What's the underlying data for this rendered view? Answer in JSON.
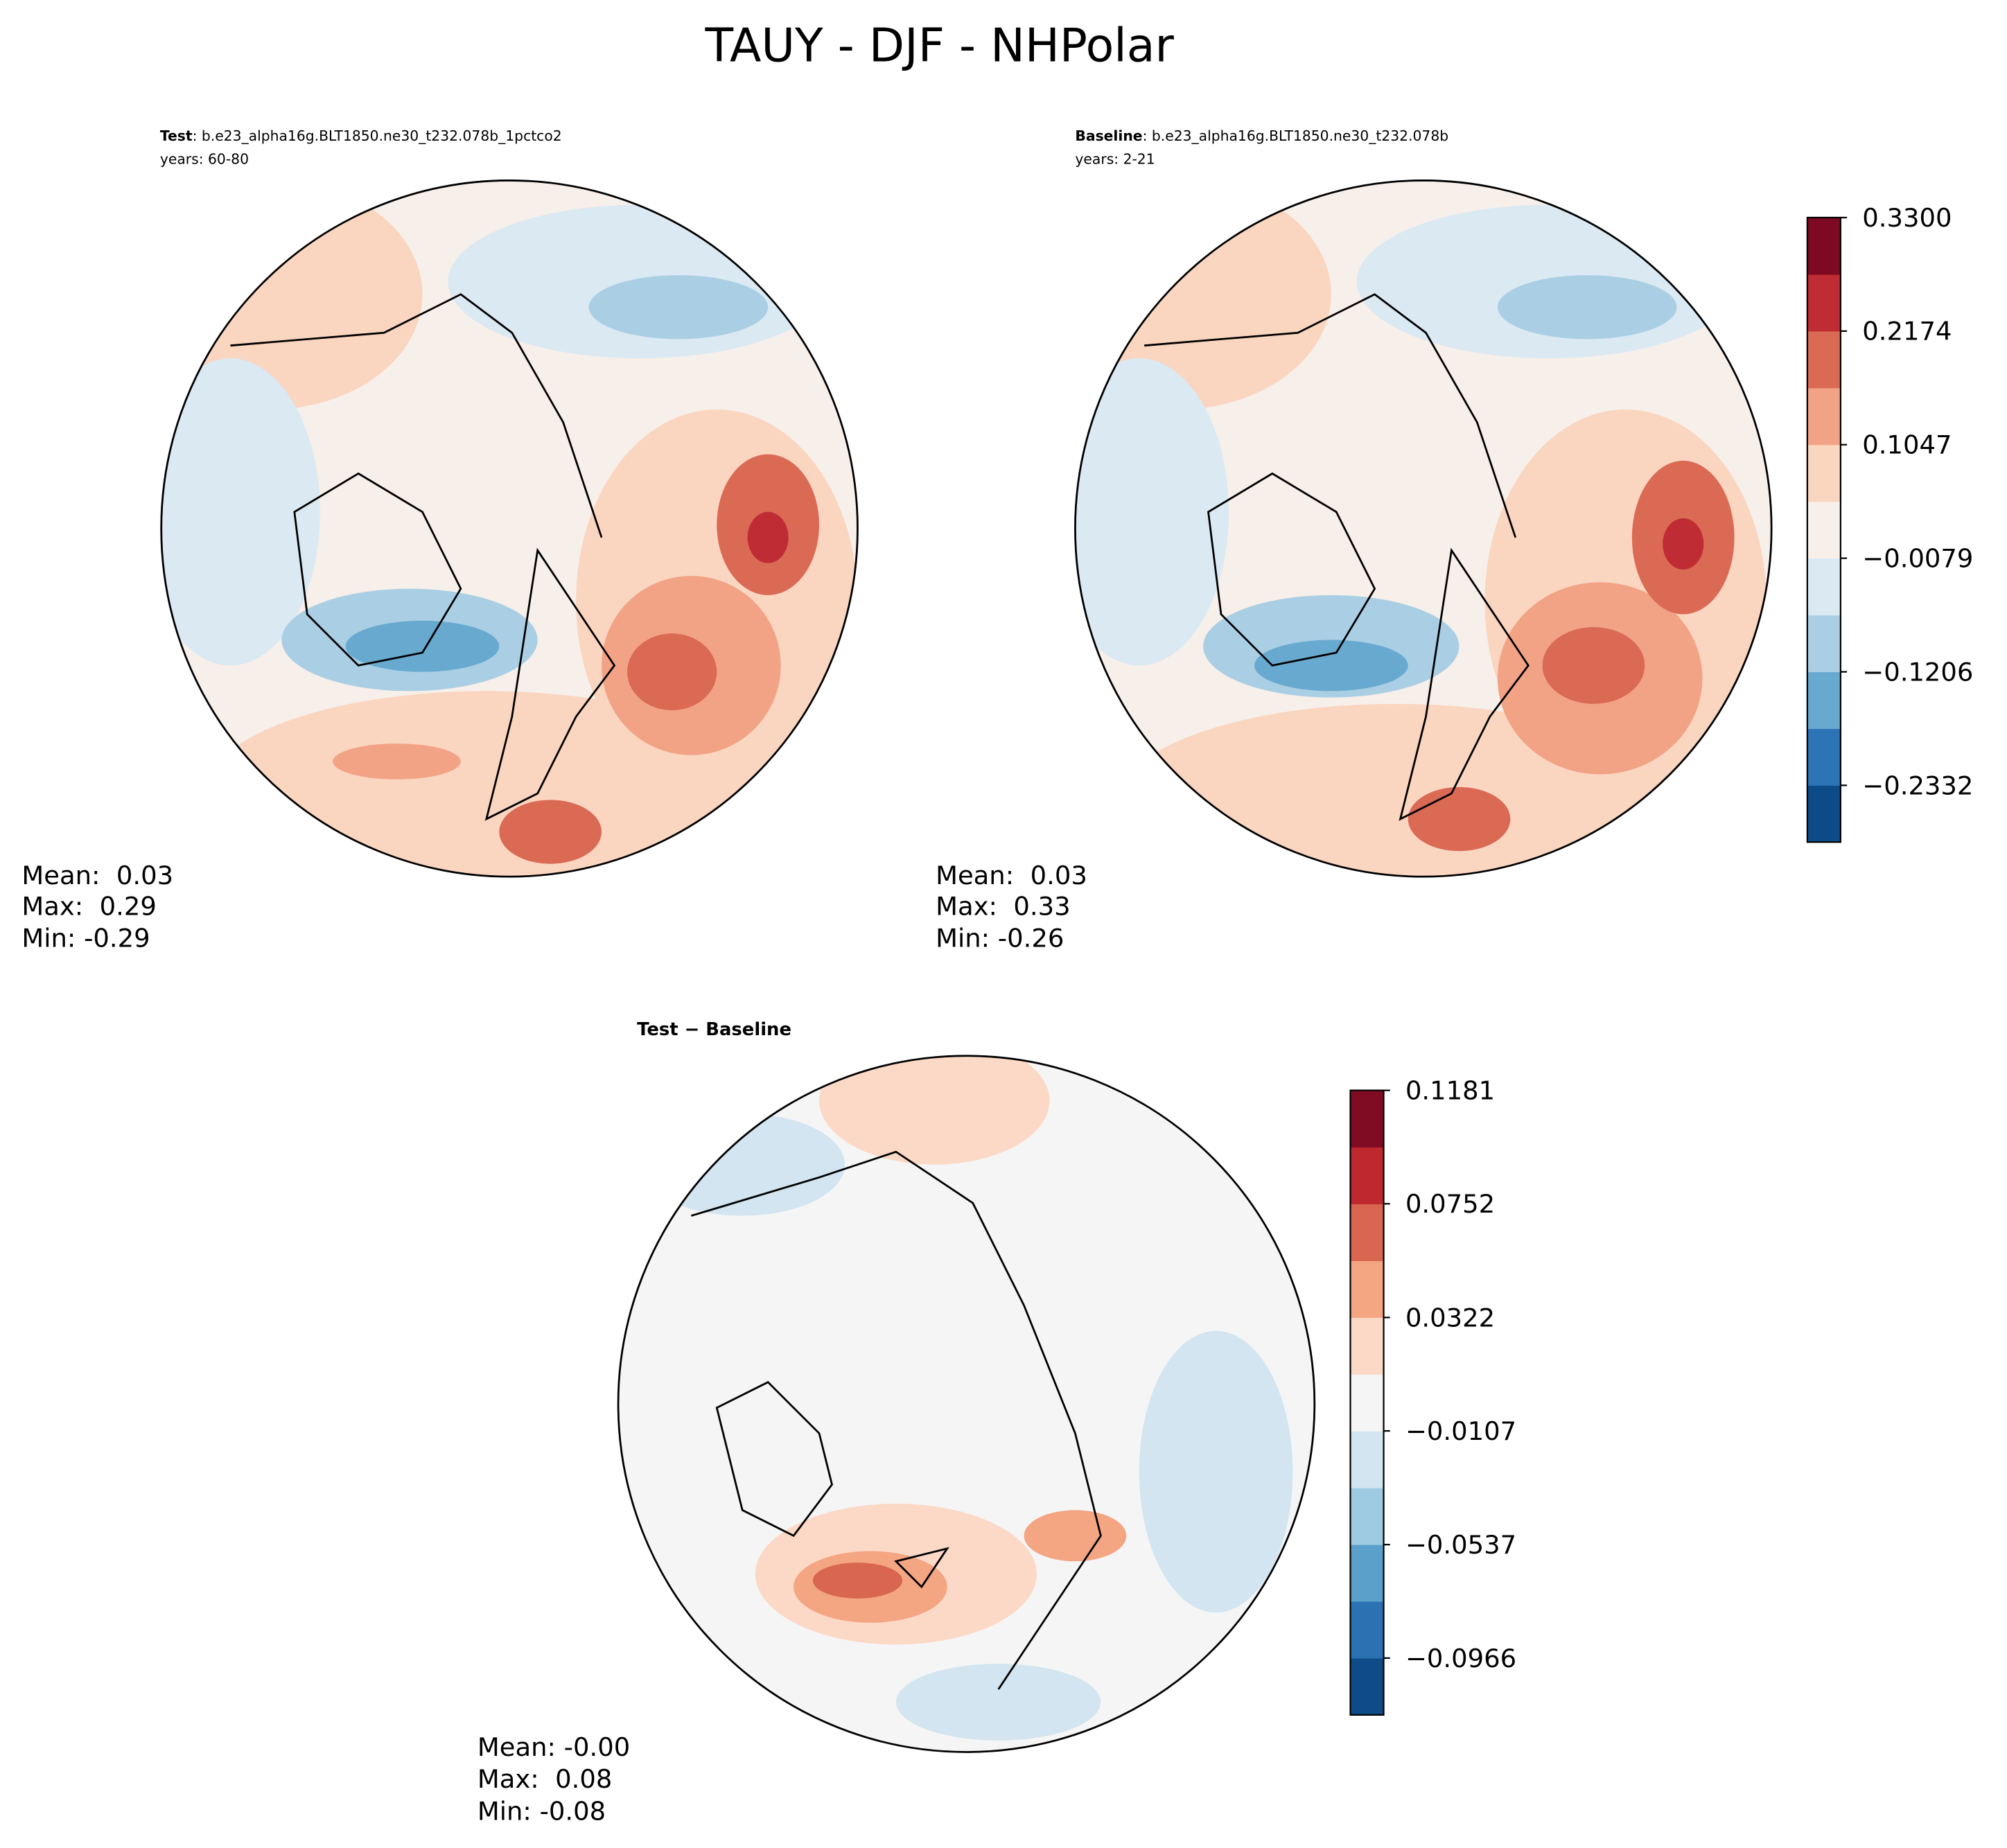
{
  "title": "TAUY - DJF - NHPolar",
  "panels": [
    {
      "label": "Test",
      "case": ": b.e23_alpha16g.BLT1850.ne30_t232.078b_1pctco2",
      "years": "years: 60-80",
      "stats": [
        "Mean:  0.03",
        "Max:  0.29",
        "Min: -0.29"
      ]
    },
    {
      "label": "Baseline",
      "case": ": b.e23_alpha16g.BLT1850.ne30_t232.078b",
      "years": "years: 2-21",
      "stats": [
        "Mean:  0.03",
        "Max:  0.33",
        "Min: -0.26"
      ]
    },
    {
      "label": "Test − Baseline",
      "stats": [
        "Mean: -0.00",
        "Max:  0.08",
        "Min: -0.08"
      ]
    }
  ],
  "colorbars": [
    {
      "lim": [
        -0.2895,
        0.33
      ],
      "ticks": [
        {
          "value": 0.33,
          "label": "0.3300"
        },
        0.2174,
        0.1047,
        {
          "value": -0.0079,
          "label": "−0.0079"
        },
        {
          "value": -0.1206,
          "label": "−0.1206"
        },
        {
          "value": -0.2332,
          "label": "−0.2332"
        }
      ],
      "colors": [
        "#0d4a88",
        "#2c74b5",
        "#68a9d0",
        "#aacfe4",
        "#dbe9f3",
        "#f7efea",
        "#fad5c0",
        "#f2a385",
        "#db6a55",
        "#bf2c33",
        "#7d0a22"
      ]
    },
    {
      "lim": [
        -0.1181,
        0.1181
      ],
      "ticks": [
        0.1181,
        0.0752,
        0.0322,
        {
          "value": -0.0107,
          "label": "−0.0107"
        },
        {
          "value": -0.0537,
          "label": "−0.0537"
        },
        {
          "value": -0.0966,
          "label": "−0.0966"
        }
      ],
      "colors": [
        "#0f4b87",
        "#2b72b3",
        "#5aa0cb",
        "#9ecbe2",
        "#d2e5f0",
        "#f5f5f5",
        "#fbd9c6",
        "#f4a582",
        "#d86650",
        "#c0282f",
        "#800c24"
      ]
    }
  ]
}
